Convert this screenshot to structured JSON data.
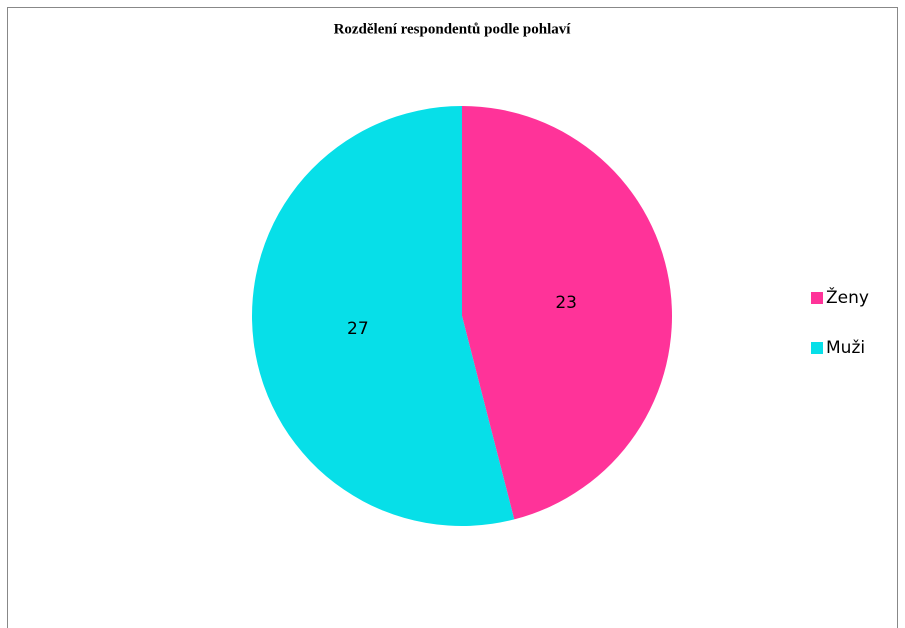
{
  "chart_data": {
    "type": "pie",
    "title": "Rozdělení respondentů podle pohlaví",
    "categories": [
      "Ženy",
      "Muži"
    ],
    "values": [
      23,
      27
    ],
    "colors": [
      "#ff3399",
      "#07dfe8"
    ]
  }
}
